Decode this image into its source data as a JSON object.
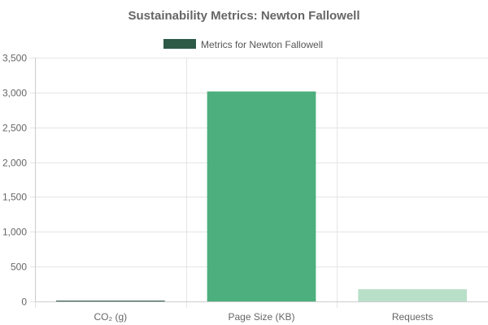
{
  "chart_data": {
    "type": "bar",
    "title": "Sustainability Metrics: Newton Fallowell",
    "categories": [
      "CO₂ (g)",
      "Page Size (KB)",
      "Requests"
    ],
    "series": [
      {
        "name": "Metrics for Newton Fallowell",
        "values": [
          1.9,
          3015,
          175
        ],
        "colors": [
          "#2d5a47",
          "#4caf7d",
          "#b8e0c8"
        ]
      }
    ],
    "legend_color": "#2d5a47",
    "legend_position": "top",
    "y_ticks": [
      "0",
      "500",
      "1,000",
      "1,500",
      "2,000",
      "2,500",
      "3,000",
      "3,500"
    ],
    "ylim": [
      0,
      3500
    ],
    "grid": true
  }
}
